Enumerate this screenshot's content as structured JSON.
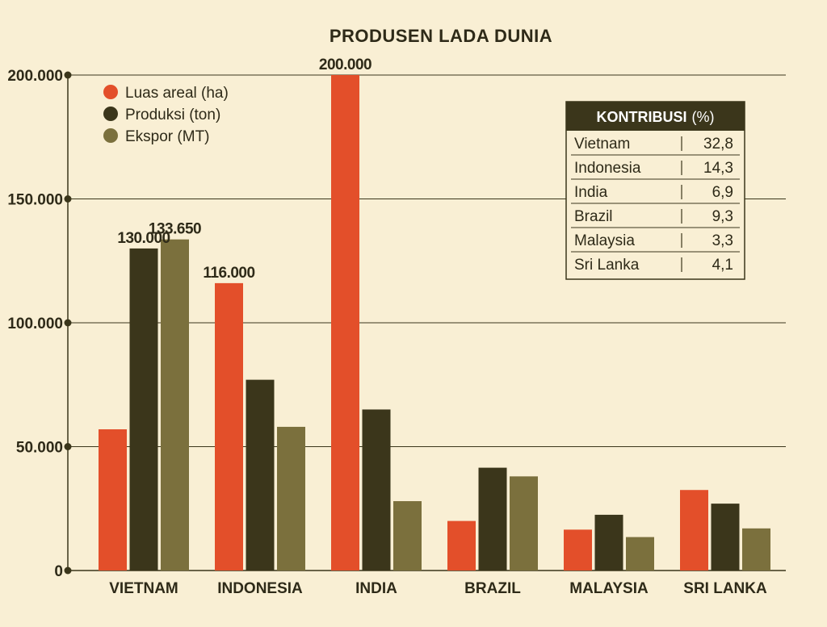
{
  "chart_data": {
    "type": "bar",
    "title": "PRODUSEN LADA DUNIA",
    "categories": [
      "VIETNAM",
      "INDONESIA",
      "INDIA",
      "BRAZIL",
      "MALAYSIA",
      "SRI LANKA"
    ],
    "series": [
      {
        "name": "Luas areal (ha)",
        "color": "#e34f2a",
        "values": [
          57000,
          116000,
          200000,
          20000,
          16500,
          32500
        ]
      },
      {
        "name": "Produksi (ton)",
        "color": "#3b361b",
        "values": [
          130000,
          77000,
          65000,
          41500,
          22500,
          27000
        ]
      },
      {
        "name": "Ekspor (MT)",
        "color": "#7b703d",
        "values": [
          133650,
          58000,
          28000,
          38000,
          13500,
          17000
        ]
      }
    ],
    "data_labels": [
      {
        "category": "VIETNAM",
        "series": "Produksi (ton)",
        "text": "130.000"
      },
      {
        "category": "VIETNAM",
        "series": "Ekspor (MT)",
        "text": "133.650"
      },
      {
        "category": "INDONESIA",
        "series": "Luas areal (ha)",
        "text": "116.000"
      },
      {
        "category": "INDIA",
        "series": "Luas areal (ha)",
        "text": "200.000"
      }
    ],
    "yticks": [
      {
        "value": 0,
        "label": "0"
      },
      {
        "value": 50000,
        "label": "50.000"
      },
      {
        "value": 100000,
        "label": "100.000"
      },
      {
        "value": 150000,
        "label": "150.000"
      },
      {
        "value": 200000,
        "label": "200.000"
      }
    ],
    "ylim": [
      0,
      200000
    ],
    "xlabel": "",
    "ylabel": "",
    "grid": true,
    "legend_position": "top-left",
    "inset_table": {
      "header_bold": "KONTRIBUSI",
      "header_rest": "(%)",
      "rows": [
        {
          "country": "Vietnam",
          "value": "32,8"
        },
        {
          "country": "Indonesia",
          "value": "14,3"
        },
        {
          "country": "India",
          "value": "6,9"
        },
        {
          "country": "Brazil",
          "value": "9,3"
        },
        {
          "country": "Malaysia",
          "value": "3,3"
        },
        {
          "country": "Sri Lanka",
          "value": "4,1"
        }
      ]
    },
    "colors": {
      "background": "#f9efd4",
      "axis": "#3b361b",
      "grid": "#3b361b",
      "table_header": "#3b361b"
    }
  }
}
